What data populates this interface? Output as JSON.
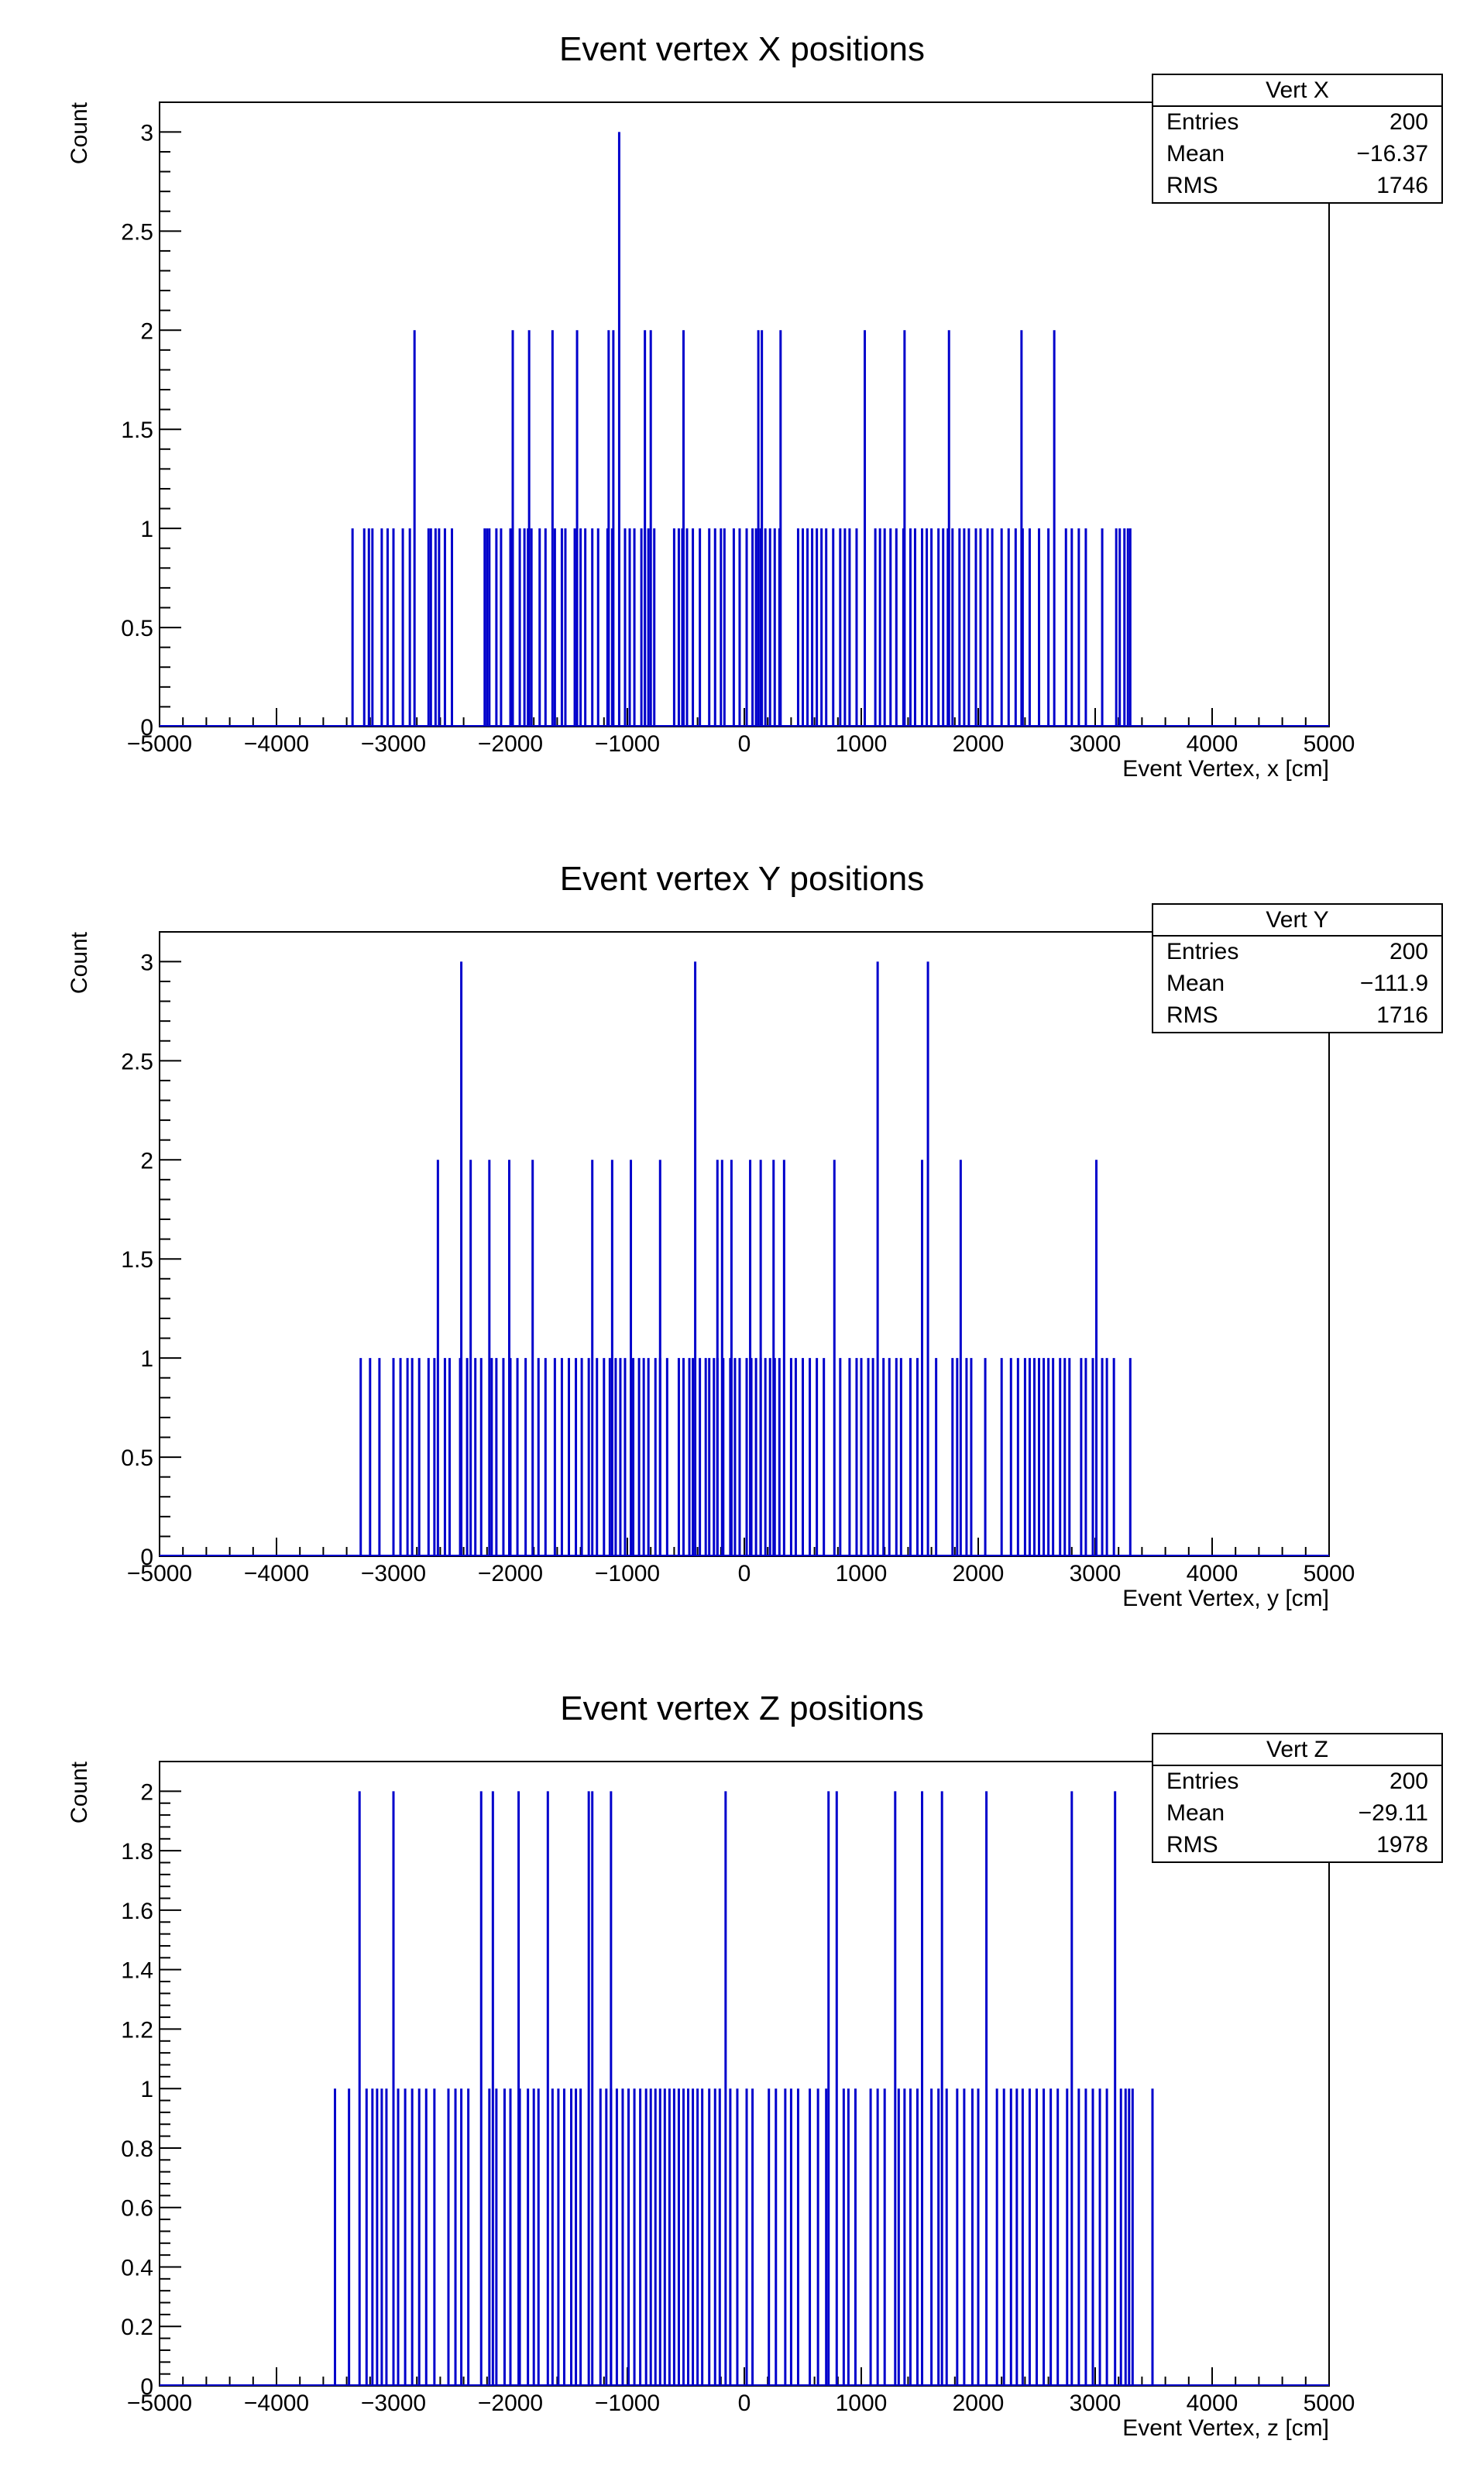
{
  "colors": {
    "line": "#0000cc",
    "frame": "#000000",
    "background": "#ffffff"
  },
  "chart_data": [
    {
      "type": "bar",
      "title": "Event vertex X positions",
      "xlabel": "Event Vertex, x [cm]",
      "ylabel": "Count",
      "xlim": [
        -5000,
        5000
      ],
      "ylim": [
        0,
        3.15
      ],
      "xticks": [
        -5000,
        -4000,
        -3000,
        -2000,
        -1000,
        0,
        1000,
        2000,
        3000,
        4000,
        5000
      ],
      "xtick_labels": [
        "−5000",
        "−4000",
        "−3000",
        "−2000",
        "−1000",
        "0",
        "1000",
        "2000",
        "3000",
        "4000",
        "5000"
      ],
      "yticks": [
        0,
        0.5,
        1,
        1.5,
        2,
        2.5,
        3
      ],
      "ytick_labels": [
        "0",
        "0.5",
        "1",
        "1.5",
        "2",
        "2.5",
        "3"
      ],
      "grid": false,
      "legend_position": "top-right",
      "stats": {
        "name": "Vert X",
        "rows": [
          {
            "label": "Entries",
            "value": "200"
          },
          {
            "label": "Mean",
            "value": "−16.37"
          },
          {
            "label": "RMS",
            "value": "1746"
          }
        ]
      },
      "series": [
        {
          "x": [
            -3350,
            -3250,
            -3210,
            -3180,
            -3100,
            -3050,
            -3000,
            -2920,
            -2860,
            -2700,
            -2680,
            -2640,
            -2610,
            -2560,
            -2500,
            -2220,
            -2200,
            -2180,
            -2120,
            -2080,
            -2000,
            -1980,
            -1920,
            -1880,
            -1850,
            -1820,
            -1750,
            -1700,
            -1620,
            -1560,
            -1530,
            -1450,
            -1400,
            -1360,
            -1300,
            -1250,
            -1170,
            -1130,
            -1020,
            -980,
            -940,
            -880,
            -850,
            -820,
            -770,
            -600,
            -560,
            -530,
            -490,
            -440,
            -380,
            -300,
            -250,
            -200,
            -170,
            -90,
            -40,
            20,
            70,
            100,
            140,
            180,
            220,
            260,
            300,
            460,
            500,
            540,
            580,
            620,
            660,
            700,
            760,
            820,
            860,
            900,
            960,
            1120,
            1160,
            1200,
            1250,
            1300,
            1360,
            1420,
            1460,
            1520,
            1560,
            1600,
            1660,
            1700,
            1740,
            1780,
            1840,
            1880,
            1920,
            1980,
            2020,
            2080,
            2120,
            2200,
            2260,
            2320,
            2380,
            2440,
            2520,
            2600,
            2750,
            2800,
            2860,
            2920,
            3060,
            3180,
            3210,
            3250,
            3280,
            3300,
            -2820,
            -1980,
            -1840,
            -1640,
            -1430,
            -1160,
            -1120,
            -850,
            -800,
            -520,
            120,
            150,
            310,
            1030,
            1370,
            1750,
            2370,
            2650,
            -1070
          ],
          "y": [
            1,
            1,
            1,
            1,
            1,
            1,
            1,
            1,
            1,
            1,
            1,
            1,
            1,
            1,
            1,
            1,
            1,
            1,
            1,
            1,
            1,
            1,
            1,
            1,
            1,
            1,
            1,
            1,
            1,
            1,
            1,
            1,
            1,
            1,
            1,
            1,
            1,
            1,
            1,
            1,
            1,
            1,
            1,
            1,
            1,
            1,
            1,
            1,
            1,
            1,
            1,
            1,
            1,
            1,
            1,
            1,
            1,
            1,
            1,
            1,
            1,
            1,
            1,
            1,
            1,
            1,
            1,
            1,
            1,
            1,
            1,
            1,
            1,
            1,
            1,
            1,
            1,
            1,
            1,
            1,
            1,
            1,
            1,
            1,
            1,
            1,
            1,
            1,
            1,
            1,
            1,
            1,
            1,
            1,
            1,
            1,
            1,
            1,
            1,
            1,
            1,
            1,
            1,
            1,
            1,
            1,
            1,
            1,
            1,
            1,
            1,
            1,
            1,
            1,
            1,
            1,
            2,
            2,
            2,
            2,
            2,
            2,
            2,
            2,
            2,
            2,
            2,
            2,
            2,
            2,
            2,
            2,
            2,
            2,
            3
          ]
        }
      ]
    },
    {
      "type": "bar",
      "title": "Event vertex Y positions",
      "xlabel": "Event Vertex, y [cm]",
      "ylabel": "Count",
      "xlim": [
        -5000,
        5000
      ],
      "ylim": [
        0,
        3.15
      ],
      "xticks": [
        -5000,
        -4000,
        -3000,
        -2000,
        -1000,
        0,
        1000,
        2000,
        3000,
        4000,
        5000
      ],
      "xtick_labels": [
        "−5000",
        "−4000",
        "−3000",
        "−2000",
        "−1000",
        "0",
        "1000",
        "2000",
        "3000",
        "4000",
        "5000"
      ],
      "yticks": [
        0,
        0.5,
        1,
        1.5,
        2,
        2.5,
        3
      ],
      "ytick_labels": [
        "0",
        "0.5",
        "1",
        "1.5",
        "2",
        "2.5",
        "3"
      ],
      "grid": false,
      "legend_position": "top-right",
      "stats": {
        "name": "Vert Y",
        "rows": [
          {
            "label": "Entries",
            "value": "200"
          },
          {
            "label": "Mean",
            "value": "−111.9"
          },
          {
            "label": "RMS",
            "value": "1716"
          }
        ]
      },
      "series": [
        {
          "x": [
            -3280,
            -3200,
            -3120,
            -3000,
            -2940,
            -2880,
            -2840,
            -2780,
            -2700,
            -2650,
            -2560,
            -2520,
            -2430,
            -2370,
            -2300,
            -2250,
            -2160,
            -2120,
            -2060,
            -2000,
            -1940,
            -1870,
            -1760,
            -1700,
            -1620,
            -1560,
            -1500,
            -1440,
            -1390,
            -1330,
            -1260,
            -1200,
            -1150,
            -1100,
            -1060,
            -1020,
            -950,
            -900,
            -860,
            -820,
            -760,
            -720,
            -660,
            -560,
            -520,
            -470,
            -440,
            -380,
            -330,
            -300,
            -260,
            -230,
            -180,
            -120,
            -80,
            -40,
            20,
            60,
            100,
            140,
            180,
            220,
            260,
            300,
            400,
            440,
            500,
            560,
            620,
            680,
            820,
            900,
            960,
            1000,
            1060,
            1100,
            1190,
            1240,
            1300,
            1340,
            1420,
            1480,
            1640,
            1780,
            1820,
            1900,
            1940,
            2060,
            2200,
            2280,
            2340,
            2400,
            2440,
            2480,
            2520,
            2560,
            2600,
            2640,
            2700,
            2740,
            2780,
            2880,
            2920,
            2980,
            3060,
            3100,
            3160,
            3300,
            -2620,
            -2340,
            -2180,
            -2010,
            -1810,
            -1300,
            -1130,
            -970,
            -720,
            -230,
            -190,
            -110,
            50,
            140,
            250,
            340,
            770,
            1520,
            1850,
            3010,
            -2420,
            -420,
            1140,
            1570
          ],
          "y": [
            1,
            1,
            1,
            1,
            1,
            1,
            1,
            1,
            1,
            1,
            1,
            1,
            1,
            1,
            1,
            1,
            1,
            1,
            1,
            1,
            1,
            1,
            1,
            1,
            1,
            1,
            1,
            1,
            1,
            1,
            1,
            1,
            1,
            1,
            1,
            1,
            1,
            1,
            1,
            1,
            1,
            1,
            1,
            1,
            1,
            1,
            1,
            1,
            1,
            1,
            1,
            1,
            1,
            1,
            1,
            1,
            1,
            1,
            1,
            1,
            1,
            1,
            1,
            1,
            1,
            1,
            1,
            1,
            1,
            1,
            1,
            1,
            1,
            1,
            1,
            1,
            1,
            1,
            1,
            1,
            1,
            1,
            1,
            1,
            1,
            1,
            1,
            1,
            1,
            1,
            1,
            1,
            1,
            1,
            1,
            1,
            1,
            1,
            1,
            1,
            1,
            1,
            1,
            1,
            1,
            1,
            1,
            1,
            2,
            2,
            2,
            2,
            2,
            2,
            2,
            2,
            2,
            2,
            2,
            2,
            2,
            2,
            2,
            2,
            2,
            2,
            2,
            2,
            3,
            3,
            3,
            3
          ]
        }
      ]
    },
    {
      "type": "bar",
      "title": "Event vertex Z positions",
      "xlabel": "Event Vertex, z [cm]",
      "ylabel": "Count",
      "xlim": [
        -5000,
        5000
      ],
      "ylim": [
        0,
        2.1
      ],
      "xticks": [
        -5000,
        -4000,
        -3000,
        -2000,
        -1000,
        0,
        1000,
        2000,
        3000,
        4000,
        5000
      ],
      "xtick_labels": [
        "−5000",
        "−4000",
        "−3000",
        "−2000",
        "−1000",
        "0",
        "1000",
        "2000",
        "3000",
        "4000",
        "5000"
      ],
      "yticks": [
        0,
        0.2,
        0.4,
        0.6,
        0.8,
        1,
        1.2,
        1.4,
        1.6,
        1.8,
        2
      ],
      "ytick_labels": [
        "0",
        "0.2",
        "0.4",
        "0.6",
        "0.8",
        "1",
        "1.2",
        "1.4",
        "1.6",
        "1.8",
        "2"
      ],
      "grid": false,
      "legend_position": "top-right",
      "stats": {
        "name": "Vert Z",
        "rows": [
          {
            "label": "Entries",
            "value": "200"
          },
          {
            "label": "Mean",
            "value": "−29.11"
          },
          {
            "label": "RMS",
            "value": "1978"
          }
        ]
      },
      "series": [
        {
          "x": [
            -3500,
            -3380,
            -3230,
            -3180,
            -3140,
            -3100,
            -3060,
            -2960,
            -2900,
            -2840,
            -2780,
            -2720,
            -2650,
            -2530,
            -2470,
            -2420,
            -2360,
            -2180,
            -2120,
            -2050,
            -2000,
            -1920,
            -1850,
            -1800,
            -1760,
            -1640,
            -1590,
            -1540,
            -1480,
            -1440,
            -1400,
            -1230,
            -1180,
            -1140,
            -1090,
            -1040,
            -990,
            -940,
            -890,
            -840,
            -800,
            -760,
            -720,
            -680,
            -640,
            -600,
            -560,
            -520,
            -480,
            -440,
            -400,
            -360,
            -300,
            -250,
            -210,
            -120,
            -60,
            20,
            70,
            210,
            270,
            350,
            400,
            460,
            560,
            630,
            700,
            850,
            890,
            950,
            1080,
            1140,
            1200,
            1320,
            1370,
            1420,
            1480,
            1600,
            1660,
            1730,
            1820,
            1880,
            1950,
            2000,
            2160,
            2220,
            2280,
            2330,
            2380,
            2440,
            2500,
            2560,
            2620,
            2680,
            2760,
            2860,
            2920,
            2980,
            3040,
            3100,
            3220,
            3260,
            3290,
            3320,
            3490,
            -3290,
            -3000,
            -2250,
            -2150,
            -1930,
            -1680,
            -1330,
            -1300,
            -1140,
            -160,
            720,
            790,
            1290,
            1520,
            1690,
            2070,
            2800,
            3170
          ],
          "y": [
            1,
            1,
            1,
            1,
            1,
            1,
            1,
            1,
            1,
            1,
            1,
            1,
            1,
            1,
            1,
            1,
            1,
            1,
            1,
            1,
            1,
            1,
            1,
            1,
            1,
            1,
            1,
            1,
            1,
            1,
            1,
            1,
            1,
            1,
            1,
            1,
            1,
            1,
            1,
            1,
            1,
            1,
            1,
            1,
            1,
            1,
            1,
            1,
            1,
            1,
            1,
            1,
            1,
            1,
            1,
            1,
            1,
            1,
            1,
            1,
            1,
            1,
            1,
            1,
            1,
            1,
            1,
            1,
            1,
            1,
            1,
            1,
            1,
            1,
            1,
            1,
            1,
            1,
            1,
            1,
            1,
            1,
            1,
            1,
            1,
            1,
            1,
            1,
            1,
            1,
            1,
            1,
            1,
            1,
            1,
            1,
            1,
            1,
            1,
            1,
            1,
            1,
            1,
            1,
            1,
            2,
            2,
            2,
            2,
            2,
            2,
            2,
            2,
            2,
            2,
            2,
            2,
            2,
            2,
            2,
            2,
            2,
            2
          ]
        }
      ]
    }
  ]
}
